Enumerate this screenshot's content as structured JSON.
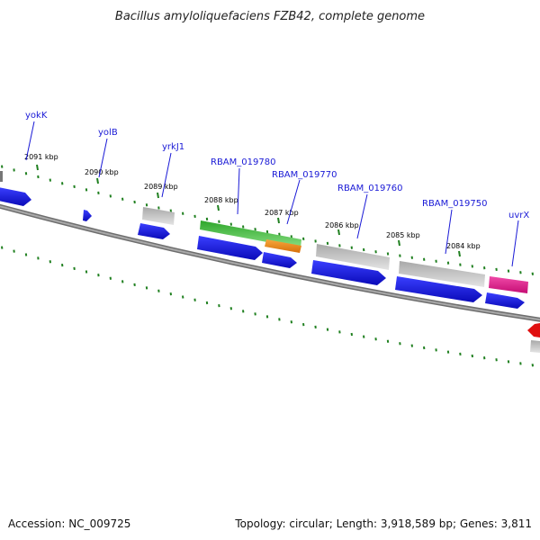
{
  "title": "Bacillus amyloliquefaciens FZB42, complete genome",
  "footer": {
    "accession": "Accession: NC_009725",
    "summary": "Topology: circular; Length: 3,918,589 bp; Genes: 3,811"
  },
  "colors": {
    "backbone": "#808080",
    "cds": "#0d12e0",
    "gene": "#bdbdbd",
    "rna_green": "#49c742",
    "rna_orange": "#f28a14",
    "pink": "#e8148c",
    "red": "#e01010",
    "tick_minor": "#208020",
    "label": "#1a1ad6"
  },
  "ticks": {
    "labels": [
      "2091 kbp",
      "2090 kbp",
      "2089 kbp",
      "2088 kbp",
      "2087 kbp",
      "2086 kbp",
      "2085 kbp",
      "2084 kbp"
    ]
  },
  "genes": {
    "labels": [
      "yokK",
      "yolB",
      "yrkJ1",
      "RBAM_019780",
      "RBAM_019770",
      "RBAM_019760",
      "RBAM_019750",
      "uvrX"
    ]
  }
}
